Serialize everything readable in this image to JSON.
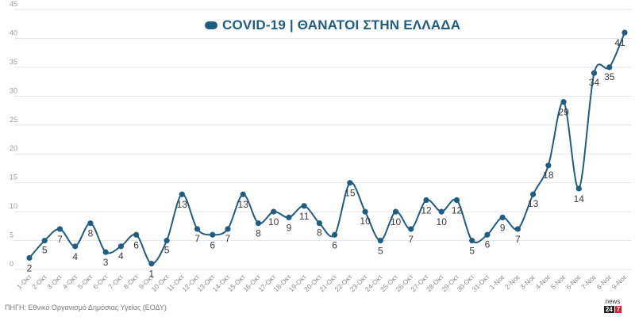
{
  "chart_data": {
    "type": "line",
    "title": "COVID-19 | ΘΑΝΑΤΟΙ ΣΤΗΝ ΕΛΛΑΔΑ",
    "ylim": [
      0,
      45
    ],
    "yticks": [
      0,
      5,
      10,
      15,
      20,
      25,
      30,
      35,
      40,
      45
    ],
    "grid": true,
    "legend_position": "top-center",
    "categories": [
      "1-Οκτ",
      "2-Οκτ",
      "3-Οκτ",
      "4-Οκτ",
      "5-Οκτ",
      "6-Οκτ",
      "7-Οκτ",
      "8-Οκτ",
      "9-Οκτ",
      "10-Οκτ",
      "11-Οκτ",
      "12-Οκτ",
      "13-Οκτ",
      "14-Οκτ",
      "15-Οκτ",
      "16-Οκτ",
      "17-Οκτ",
      "18-Οκτ",
      "19-Οκτ",
      "20-Οκτ",
      "21-Οκτ",
      "22-Οκτ",
      "23-Οκτ",
      "24-Οκτ",
      "25-Οκτ",
      "26-Οκτ",
      "27-Οκτ",
      "28-Οκτ",
      "29-Οκτ",
      "30-Οκτ",
      "31-Οκτ",
      "1-Νοε",
      "2-Νοε",
      "3-Νοε",
      "4-Νοε",
      "5-Νοε",
      "6-Νοε",
      "7-Νοε",
      "8-Νοε",
      "9-Νοε"
    ],
    "series": [
      {
        "name": "COVID-19 | ΘΑΝΑΤΟΙ ΣΤΗΝ ΕΛΛΑΔΑ",
        "color": "#1f5d82",
        "values": [
          2,
          5,
          7,
          4,
          8,
          3,
          4,
          6,
          1,
          5,
          13,
          7,
          6,
          7,
          13,
          8,
          10,
          9,
          11,
          8,
          6,
          15,
          10,
          5,
          10,
          7,
          12,
          10,
          12,
          5,
          6,
          9,
          7,
          13,
          18,
          29,
          14,
          34,
          35,
          41
        ]
      }
    ]
  },
  "footer": {
    "source": "ΠΗΓΗ: Εθνικό Οργανισμό Δημόσιας Υγείας (ΕΟΔΥ)",
    "logo_top": "news",
    "logo_num1": "24",
    "logo_num2": "7"
  },
  "colors": {
    "line": "#1f5d82",
    "label": "#3a3a3a",
    "grid": "#e6e6e6"
  }
}
